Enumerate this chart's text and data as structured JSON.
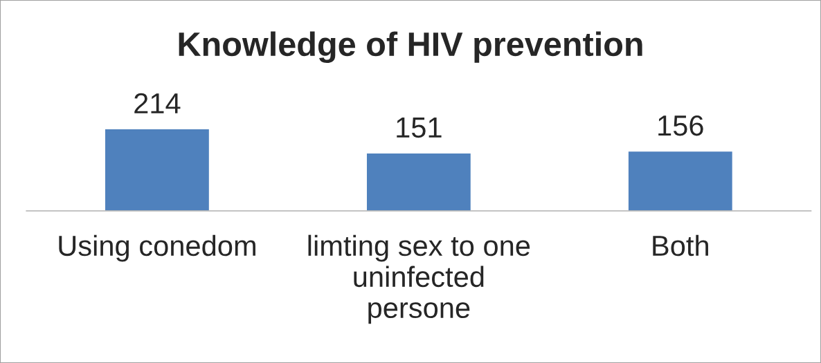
{
  "chart_data": {
    "type": "bar",
    "title": "Knowledge of HIV prevention",
    "categories": [
      "Using conedom",
      "limting sex to one uninfected persone",
      "Both"
    ],
    "values": [
      214,
      151,
      156
    ],
    "color": "#4f81bd",
    "data_labels": true,
    "grid": false,
    "legend": false
  }
}
